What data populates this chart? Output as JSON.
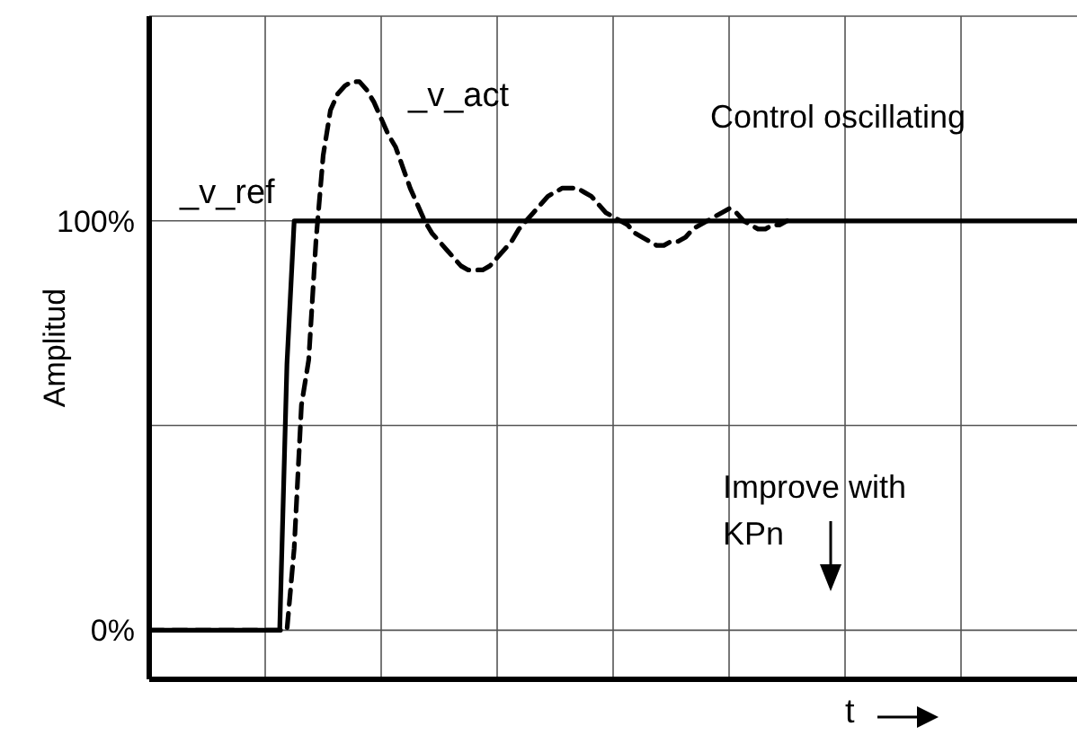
{
  "chart_data": {
    "type": "line",
    "xlabel": "t",
    "ylabel": "Amplitud",
    "categories": [
      null,
      null,
      null,
      null,
      null,
      null,
      null,
      null,
      null,
      null,
      null,
      null,
      null,
      null,
      null,
      null,
      null,
      null,
      null,
      null,
      null,
      null,
      null,
      null,
      null,
      null,
      null,
      null,
      null,
      null,
      null,
      null,
      null,
      null,
      null,
      null,
      null,
      null,
      null,
      null,
      null,
      null,
      null,
      null,
      null,
      null,
      null,
      null,
      null,
      null,
      null,
      null,
      null,
      null,
      null,
      null,
      null,
      null,
      null,
      null,
      null,
      null,
      null,
      null,
      null,
      null,
      null,
      null,
      null,
      null,
      null,
      null,
      null,
      null,
      null,
      null,
      null,
      null,
      null,
      null,
      null,
      null,
      null,
      null,
      null,
      null,
      null,
      null,
      null,
      null,
      null,
      null,
      null,
      null,
      null,
      null,
      null,
      null,
      null,
      null,
      null,
      null,
      null,
      null,
      null,
      null,
      null,
      null,
      null,
      null,
      null,
      null,
      null,
      null,
      null,
      null,
      null,
      null,
      null,
      null,
      null,
      null,
      null,
      null,
      null,
      null,
      null,
      null,
      null
    ],
    "ylim": [
      -12,
      150
    ],
    "yticks": [
      {
        "value": 0,
        "label": "0%"
      },
      {
        "value": 50,
        "label": null
      },
      {
        "value": 100,
        "label": "100%"
      }
    ],
    "tick_labels": "y",
    "grid": true,
    "marker": "none",
    "series": [
      {
        "name": "_v_ref",
        "color": "#000000",
        "line_style": "solid",
        "values": [
          0,
          0,
          0,
          0,
          0,
          0,
          0,
          0,
          0,
          0,
          0,
          0,
          0,
          0,
          0,
          0,
          0,
          0,
          0,
          65,
          100,
          100,
          100,
          100,
          100,
          100,
          100,
          100,
          100,
          100,
          100,
          100,
          100,
          100,
          100,
          100,
          100,
          100,
          100,
          100,
          100,
          100,
          100,
          100,
          100,
          100,
          100,
          100,
          100,
          100,
          100,
          100,
          100,
          100,
          100,
          100,
          100,
          100,
          100,
          100,
          100,
          100,
          100,
          100,
          100,
          100,
          100,
          100,
          100,
          100,
          100,
          100,
          100,
          100,
          100,
          100,
          100,
          100,
          100,
          100,
          100,
          100,
          100,
          100,
          100,
          100,
          100,
          100,
          100,
          100,
          100,
          100,
          100,
          100,
          100,
          100,
          100,
          100,
          100,
          100,
          100,
          100,
          100,
          100,
          100,
          100,
          100,
          100,
          100,
          100,
          100,
          100,
          100,
          100,
          100,
          100,
          100,
          100,
          100,
          100,
          100,
          100,
          100,
          100,
          100,
          100,
          100,
          100,
          100
        ]
      },
      {
        "name": "_v_act",
        "color": "#000000",
        "line_style": "dashed",
        "values": [
          0,
          0,
          0,
          0,
          0,
          0,
          0,
          0,
          0,
          0,
          0,
          0,
          0,
          0,
          0,
          0,
          0,
          0,
          0,
          0,
          20,
          55,
          66,
          95,
          116,
          127,
          131,
          133,
          134,
          134,
          132,
          129,
          125,
          121,
          118,
          113,
          108,
          104,
          100,
          97,
          95,
          93,
          91,
          89,
          88,
          88,
          88,
          89,
          91,
          93,
          95,
          98,
          100,
          102,
          104,
          106,
          107,
          108,
          108,
          108,
          107,
          106,
          104,
          102,
          101,
          100,
          99,
          97,
          96,
          95,
          94,
          94,
          95,
          95,
          96,
          98,
          99,
          100,
          101,
          102,
          103,
          102,
          100,
          99,
          98,
          98,
          99,
          99,
          100,
          null,
          null,
          null,
          null,
          null,
          null,
          null,
          null,
          null,
          null,
          null,
          null,
          null,
          null,
          null,
          null,
          null,
          null,
          null,
          null,
          null,
          null,
          null,
          null,
          null,
          null,
          null,
          null,
          null,
          null,
          null,
          null,
          null,
          null,
          null,
          null,
          null,
          null,
          null,
          null
        ]
      }
    ],
    "annotations": [
      "Control oscillating",
      "Improve with KPn"
    ]
  }
}
